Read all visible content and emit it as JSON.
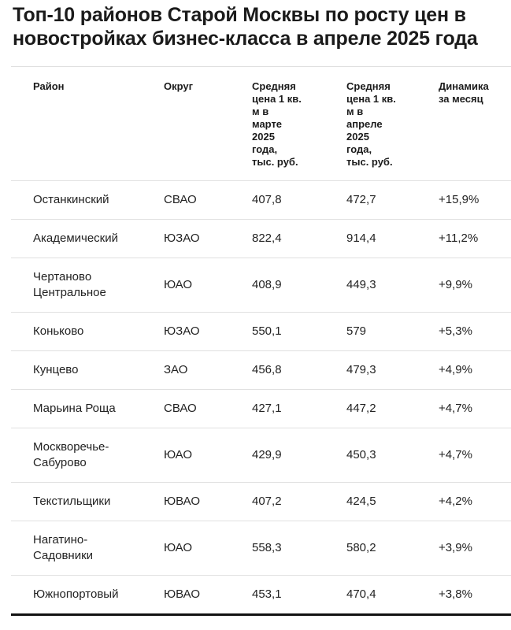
{
  "title": "Топ-10 районов Старой Москвы по росту цен в новостройках бизнес-класса в апреле 2025 года",
  "chart_data": {
    "type": "table",
    "title": "Топ-10 районов Старой Москвы по росту цен в новостройках бизнес-класса в апреле 2025 года",
    "columns": [
      "Район",
      "Округ",
      "Средняя цена 1 кв. м в марте 2025 года, тыс. руб.",
      "Средняя цена 1 кв. м в апреле 2025 года, тыс. руб.",
      "Динамика за месяц"
    ],
    "header_display": [
      "Район",
      "Округ",
      "Средняя\nцена 1 кв.\nм в\nмарте\n2025\nгода,\nтыс. руб.",
      "Средняя\nцена 1 кв.\nм в\nапреле\n2025\nгода,\nтыс. руб.",
      "Динамика\nза месяц"
    ],
    "rows": [
      {
        "district": "Останкинский",
        "okrug": "СВАО",
        "price_march": "407,8",
        "price_april": "472,7",
        "change": "+15,9%"
      },
      {
        "district": "Академический",
        "okrug": "ЮЗАО",
        "price_march": "822,4",
        "price_april": "914,4",
        "change": "+11,2%"
      },
      {
        "district": "Чертаново Центральное",
        "okrug": "ЮАО",
        "price_march": "408,9",
        "price_april": "449,3",
        "change": "+9,9%"
      },
      {
        "district": "Коньково",
        "okrug": "ЮЗАО",
        "price_march": "550,1",
        "price_april": "579",
        "change": "+5,3%"
      },
      {
        "district": "Кунцево",
        "okrug": "ЗАО",
        "price_march": "456,8",
        "price_april": "479,3",
        "change": "+4,9%"
      },
      {
        "district": "Марьина Роща",
        "okrug": "СВАО",
        "price_march": "427,1",
        "price_april": "447,2",
        "change": "+4,7%"
      },
      {
        "district": "Москворечье-Сабурово",
        "okrug": "ЮАО",
        "price_march": "429,9",
        "price_april": "450,3",
        "change": "+4,7%"
      },
      {
        "district": "Текстильщики",
        "okrug": "ЮВАО",
        "price_march": "407,2",
        "price_april": "424,5",
        "change": "+4,2%"
      },
      {
        "district": "Нагатино-Садовники",
        "okrug": "ЮАО",
        "price_march": "558,3",
        "price_april": "580,2",
        "change": "+3,9%"
      },
      {
        "district": "Южнопортовый",
        "okrug": "ЮВАО",
        "price_march": "453,1",
        "price_april": "470,4",
        "change": "+3,8%"
      }
    ]
  },
  "colors": {
    "background": "#ffffff",
    "text": "#1f1f1f",
    "divider": "#e0e0e0",
    "bottom_border": "#111111"
  }
}
